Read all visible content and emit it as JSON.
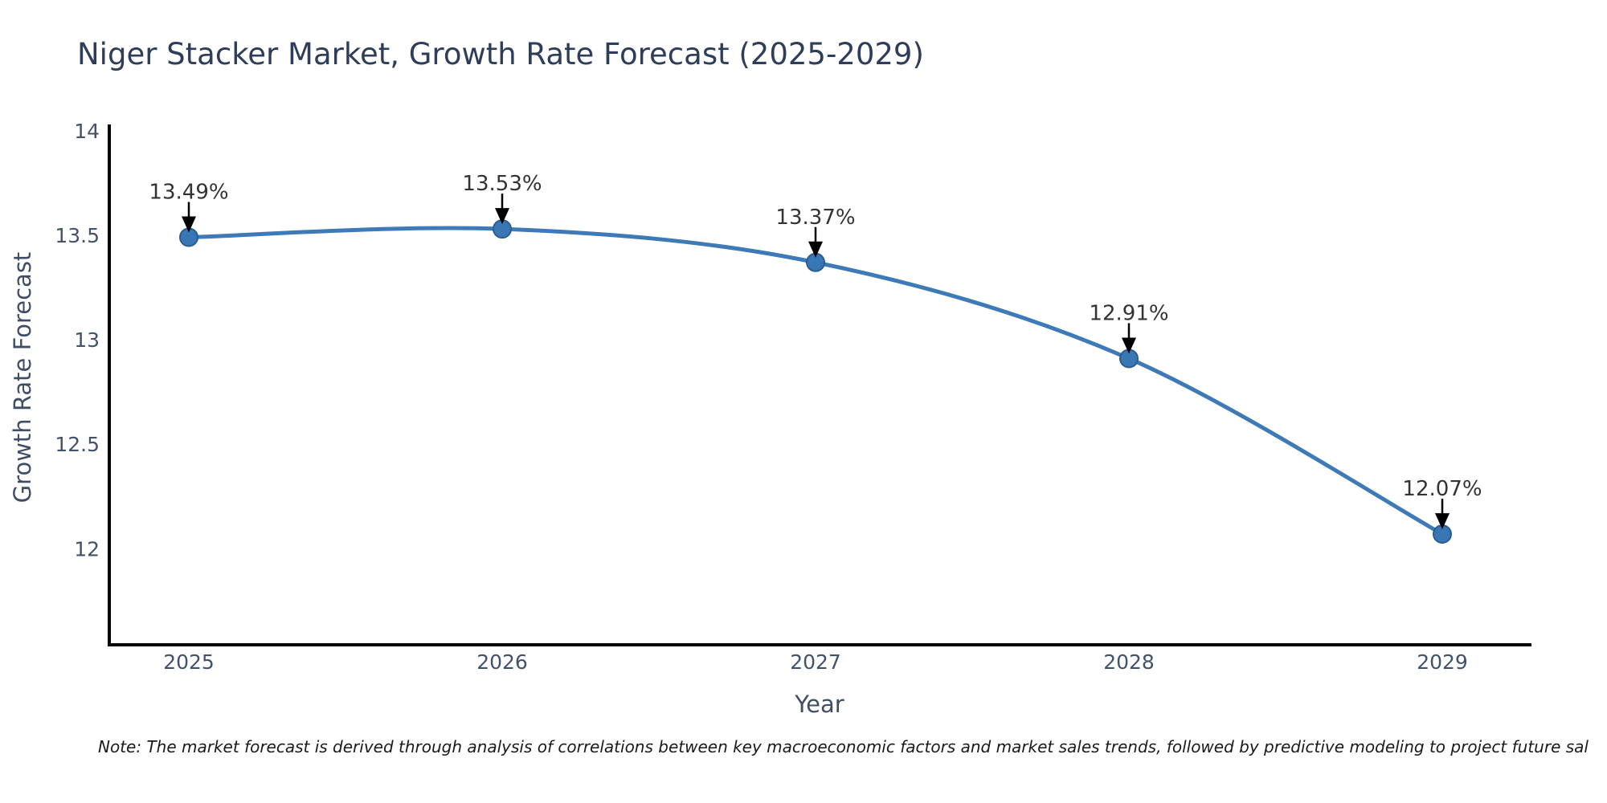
{
  "chart_data": {
    "type": "line",
    "title": "Niger Stacker Market, Growth Rate Forecast (2025-2029)",
    "xlabel": "Year",
    "ylabel": "Growth Rate Forecast",
    "x": [
      2025,
      2026,
      2027,
      2028,
      2029
    ],
    "series": [
      {
        "name": "Growth Rate Forecast",
        "values": [
          13.49,
          13.53,
          13.37,
          12.91,
          12.07
        ]
      }
    ],
    "point_labels": [
      "13.49%",
      "13.53%",
      "13.37%",
      "12.91%",
      "12.07%"
    ],
    "ytick_labels": [
      "14",
      "13.5",
      "13",
      "12.5",
      "12"
    ],
    "ytick_values": [
      14,
      13.5,
      13,
      12.5,
      12
    ],
    "xtick_labels": [
      "2025",
      "2026",
      "2027",
      "2028",
      "2029"
    ],
    "ylim": [
      11.54,
      14.03
    ],
    "grid": false,
    "legend": "none",
    "smooth": true,
    "colors": {
      "line": "#3d7ab7",
      "marker_fill": "#3876b4",
      "marker_edge": "#2b5d8e",
      "annotation_arrow": "#000000",
      "annotation_text": "#333333",
      "axis_spine": "#000000",
      "tick_label": "#42526b",
      "axis_title": "#3f4d66",
      "chart_title": "#2e3d59",
      "background": "#ffffff"
    }
  },
  "note": {
    "text": "Note: The market forecast is derived through analysis of correlations between key macroeconomic factors and market sales trends, followed by predictive modeling to project future sal"
  }
}
